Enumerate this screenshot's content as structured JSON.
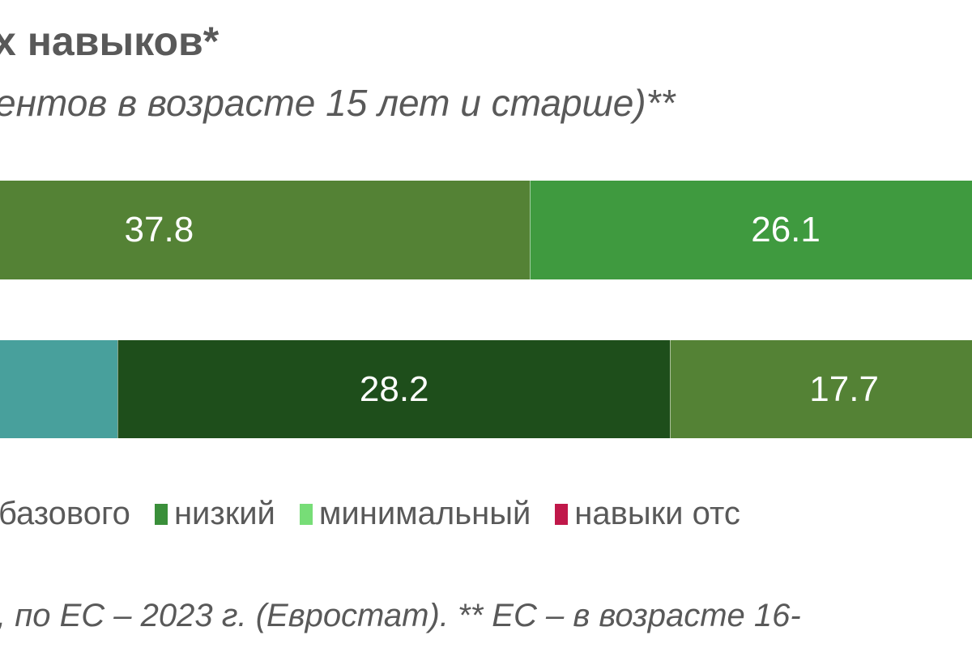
{
  "chart_data": {
    "type": "bar",
    "orientation": "horizontal-stacked",
    "title": "х навыков*",
    "subtitle": "ентов в возрасте 15 лет и старше)**",
    "rows": [
      {
        "segments": [
          {
            "value": 37.8,
            "label": "37.8",
            "color": "#548235"
          },
          {
            "value": 26.1,
            "label": "26.1",
            "color": "#3f9a3f"
          }
        ]
      },
      {
        "segments": [
          {
            "value": null,
            "label": "",
            "color": "#48a09c"
          },
          {
            "value": 28.2,
            "label": "28.2",
            "color": "#1e4e1b"
          },
          {
            "value": 17.7,
            "label": "17.7",
            "color": "#548235"
          }
        ]
      }
    ],
    "legend": [
      {
        "label": "базового",
        "color": null
      },
      {
        "label": "низкий",
        "color": "#3a8f3a"
      },
      {
        "label": "минимальный",
        "color": "#77dd77"
      },
      {
        "label": "навыки отс",
        "color": "#c0184a"
      }
    ],
    "legend_position": "bottom"
  },
  "footnote": ", по ЕС – 2023 г. (Евростат). ** ЕС – в возрасте 16-"
}
